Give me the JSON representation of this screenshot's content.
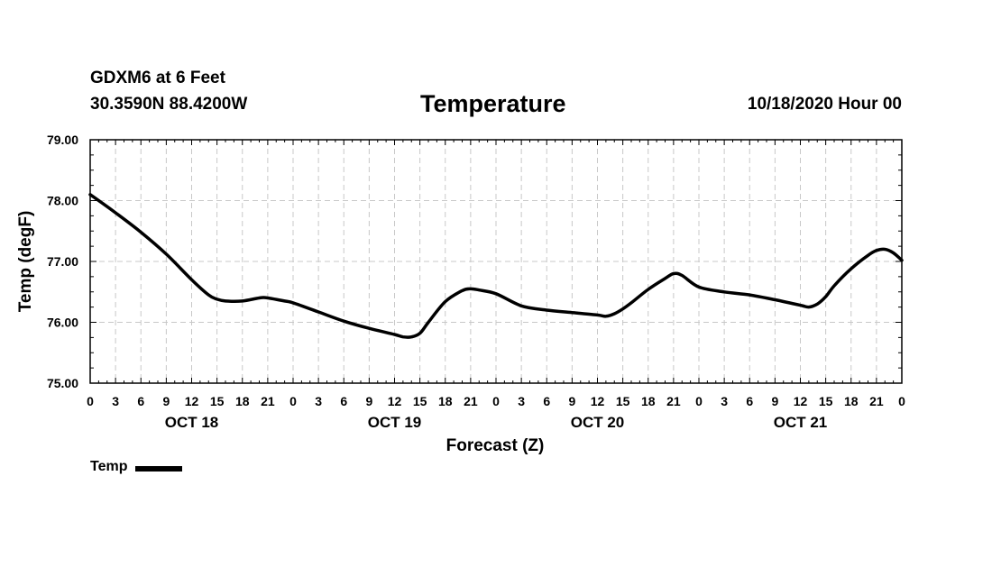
{
  "header": {
    "station": "GDXM6 at 6 Feet",
    "coords": "30.3590N 88.4200W",
    "valid_time": "10/18/2020 Hour 00"
  },
  "chart_data": {
    "type": "line",
    "title": "Temperature",
    "xlabel": "Forecast (Z)",
    "ylabel": "Temp (degF)",
    "x_unit": "forecast hour",
    "xlim": [
      0,
      96
    ],
    "ylim": [
      75.0,
      79.0
    ],
    "y_ticks": [
      "75.00",
      "76.00",
      "77.00",
      "78.00",
      "79.00"
    ],
    "x_tick_labels": [
      "0",
      "3",
      "6",
      "9",
      "12",
      "15",
      "18",
      "21",
      "0",
      "3",
      "6",
      "9",
      "12",
      "15",
      "18",
      "21",
      "0",
      "3",
      "6",
      "9",
      "12",
      "15",
      "18",
      "21",
      "0",
      "3",
      "6",
      "9",
      "12",
      "15",
      "18",
      "21",
      "0"
    ],
    "day_labels": [
      "OCT 18",
      "OCT 19",
      "OCT 20",
      "OCT 21"
    ],
    "grid": true,
    "legend": {
      "position": "bottom-left",
      "entries": [
        "Temp"
      ]
    },
    "series": [
      {
        "name": "Temp",
        "color": "#000000",
        "x": [
          0,
          3,
          6,
          9,
          12,
          14,
          15,
          16,
          18,
          20,
          21,
          23,
          24,
          27,
          30,
          33,
          36,
          37,
          38,
          39,
          40,
          42,
          44,
          45,
          46,
          48,
          51,
          54,
          57,
          60,
          61,
          62,
          63,
          64,
          66,
          68,
          69,
          70,
          72,
          75,
          78,
          81,
          84,
          85,
          86,
          87,
          88,
          90,
          92,
          93,
          94,
          95,
          96
        ],
        "values": [
          78.1,
          77.8,
          77.48,
          77.12,
          76.7,
          76.45,
          76.38,
          76.35,
          76.35,
          76.4,
          76.4,
          76.35,
          76.32,
          76.17,
          76.02,
          75.9,
          75.8,
          75.76,
          75.76,
          75.82,
          76.0,
          76.34,
          76.52,
          76.55,
          76.53,
          76.47,
          76.27,
          76.2,
          76.16,
          76.12,
          76.1,
          76.14,
          76.22,
          76.32,
          76.54,
          76.72,
          76.8,
          76.77,
          76.58,
          76.5,
          76.45,
          76.37,
          76.28,
          76.25,
          76.3,
          76.42,
          76.6,
          76.88,
          77.1,
          77.18,
          77.2,
          77.14,
          77.02
        ]
      }
    ]
  }
}
